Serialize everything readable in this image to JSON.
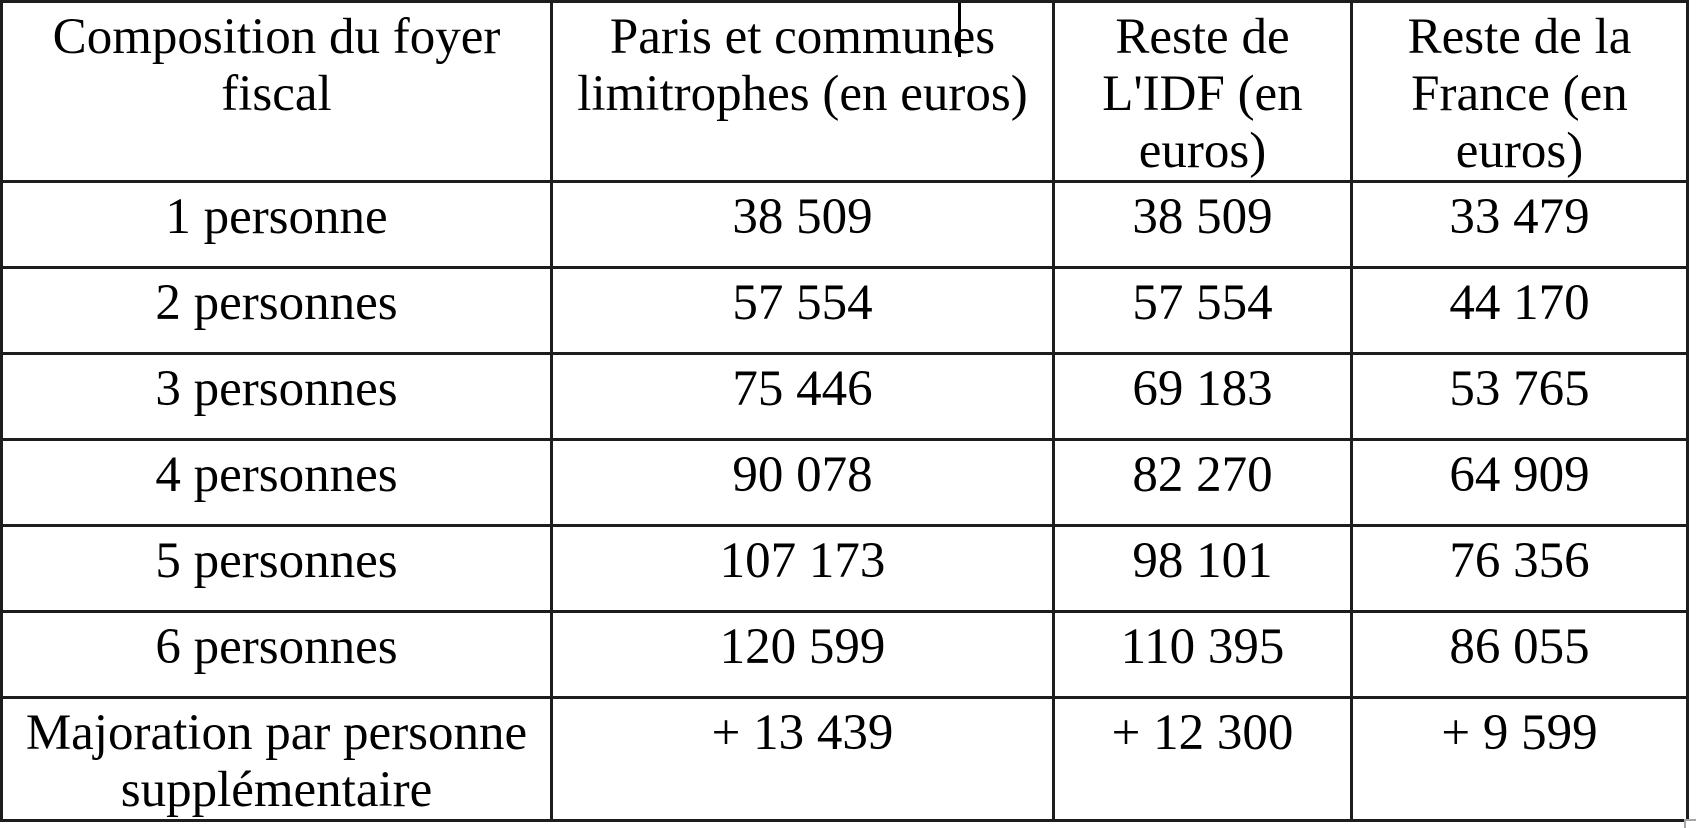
{
  "table": {
    "columns": [
      "Composition du foyer fiscal",
      "Paris et communes limitrophes (en euros)",
      "Reste de L'IDF (en euros)",
      "Reste de la France (en euros)"
    ],
    "rows": [
      {
        "label": "1 personne",
        "paris": "38 509",
        "reste_idf": "38 509",
        "reste_france": "33 479"
      },
      {
        "label": "2 personnes",
        "paris": "57 554",
        "reste_idf": "57 554",
        "reste_france": "44 170"
      },
      {
        "label": "3 personnes",
        "paris": "75 446",
        "reste_idf": "69 183",
        "reste_france": "53 765"
      },
      {
        "label": "4 personnes",
        "paris": "90 078",
        "reste_idf": "82 270",
        "reste_france": "64 909"
      },
      {
        "label": "5 personnes",
        "paris": "107 173",
        "reste_idf": "98 101",
        "reste_france": "76 356"
      },
      {
        "label": "6 personnes",
        "paris": "120 599",
        "reste_idf": "110 395",
        "reste_france": "86 055"
      },
      {
        "label": "Majoration par personne supplémentaire",
        "paris": "+ 13 439",
        "reste_idf": "+ 12 300",
        "reste_france": "+ 9 599"
      }
    ]
  },
  "colors": {
    "border": "#1d1d1d",
    "text": "#000000",
    "background": "#ffffff",
    "resize_handle_border": "#a6a6a6"
  }
}
